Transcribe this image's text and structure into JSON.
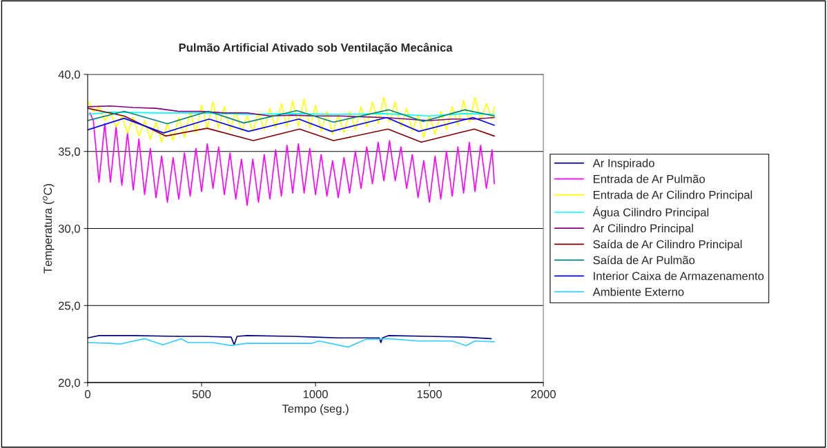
{
  "chart_data": {
    "type": "line",
    "title": "Pulmão Artificial Ativado sob Ventilação Mecânica",
    "xlabel": "Tempo (seg.)",
    "ylabel": "Temperatura ($^{o}$C)",
    "xlim": [
      0,
      2000
    ],
    "xticks": [
      0,
      500,
      1000,
      1500,
      2000
    ],
    "ylim": [
      20,
      40
    ],
    "yticks": [
      {
        "value": 20,
        "label": "20,0"
      },
      {
        "value": 25,
        "label": "25,0"
      },
      {
        "value": 30,
        "label": "30,0"
      },
      {
        "value": 35,
        "label": "35,0"
      },
      {
        "value": 40,
        "label": "40,0"
      }
    ],
    "grid": "y",
    "legend": "right",
    "marker": "none",
    "line_style": "solid",
    "series": [
      {
        "name": "Ar Inspirado",
        "color": "#000080",
        "x": [
          0,
          50,
          200,
          400,
          500,
          630,
          643,
          656,
          700,
          900,
          1000,
          1100,
          1280,
          1287,
          1294,
          1320,
          1500,
          1650,
          1771
        ],
        "values": [
          22.9,
          23.05,
          23.05,
          23.0,
          23.0,
          22.95,
          22.45,
          23.0,
          23.05,
          23.0,
          22.95,
          22.9,
          22.9,
          22.6,
          22.9,
          23.05,
          23.0,
          22.95,
          22.85
        ]
      },
      {
        "name": "Entrada de Ar Pulmão",
        "color": "#ff00ff",
        "x": [
          10,
          25,
          50,
          75,
          100,
          125,
          150,
          175,
          200,
          225,
          250,
          275,
          300,
          325,
          350,
          375,
          400,
          425,
          450,
          475,
          500,
          525,
          550,
          575,
          600,
          625,
          650,
          675,
          700,
          725,
          750,
          775,
          800,
          825,
          850,
          875,
          900,
          925,
          950,
          975,
          1000,
          1025,
          1050,
          1075,
          1100,
          1125,
          1150,
          1175,
          1200,
          1225,
          1250,
          1275,
          1300,
          1325,
          1350,
          1375,
          1400,
          1425,
          1450,
          1475,
          1500,
          1525,
          1550,
          1575,
          1600,
          1625,
          1650,
          1675,
          1700,
          1725,
          1750,
          1775,
          1785
        ],
        "values": [
          37.5,
          37.0,
          33.0,
          36.8,
          33.0,
          36.6,
          32.8,
          36.2,
          32.5,
          35.8,
          32.2,
          35.2,
          32.0,
          34.7,
          31.7,
          34.6,
          31.9,
          34.9,
          32.1,
          35.2,
          32.4,
          35.5,
          32.6,
          35.3,
          32.2,
          34.9,
          31.9,
          34.5,
          31.5,
          34.5,
          31.7,
          34.8,
          31.9,
          35.1,
          32.1,
          35.4,
          32.3,
          35.5,
          32.3,
          35.2,
          32.2,
          34.8,
          32.1,
          34.4,
          32.0,
          34.6,
          32.3,
          35.0,
          32.6,
          35.3,
          32.9,
          35.6,
          33.1,
          35.7,
          33.1,
          35.3,
          32.6,
          34.8,
          32.0,
          34.4,
          31.7,
          34.7,
          31.9,
          35.0,
          32.1,
          35.3,
          32.3,
          35.6,
          32.4,
          35.4,
          32.6,
          35.1,
          32.9
        ]
      },
      {
        "name": "Entrada de Ar Cilindro Principal",
        "color": "#ffff00",
        "x": [
          0,
          25,
          50,
          75,
          100,
          125,
          150,
          175,
          200,
          225,
          250,
          275,
          300,
          325,
          350,
          375,
          400,
          425,
          450,
          475,
          500,
          525,
          550,
          575,
          600,
          625,
          650,
          675,
          700,
          725,
          750,
          775,
          800,
          825,
          850,
          875,
          900,
          925,
          950,
          975,
          1000,
          1025,
          1050,
          1075,
          1100,
          1125,
          1150,
          1175,
          1200,
          1225,
          1250,
          1275,
          1300,
          1325,
          1350,
          1375,
          1400,
          1425,
          1450,
          1475,
          1500,
          1525,
          1550,
          1575,
          1600,
          1625,
          1650,
          1675,
          1700,
          1725,
          1750,
          1775,
          1785
        ],
        "values": [
          38.3,
          37.6,
          37.9,
          37.0,
          37.5,
          36.6,
          37.3,
          36.2,
          37.2,
          36.0,
          37.0,
          35.8,
          36.9,
          35.6,
          36.8,
          35.7,
          37.2,
          35.9,
          37.6,
          36.2,
          38.0,
          36.5,
          38.2,
          36.5,
          37.9,
          36.4,
          37.6,
          36.3,
          37.3,
          36.3,
          37.5,
          36.4,
          37.8,
          36.5,
          38.1,
          36.6,
          38.3,
          36.6,
          38.4,
          36.5,
          38.0,
          36.3,
          37.6,
          36.1,
          37.4,
          36.2,
          37.6,
          36.4,
          37.9,
          36.6,
          38.2,
          36.8,
          38.5,
          36.9,
          38.2,
          36.6,
          37.8,
          36.3,
          37.4,
          35.9,
          37.3,
          36.1,
          37.6,
          36.4,
          37.9,
          36.7,
          38.3,
          36.9,
          38.5,
          37.0,
          38.1,
          37.1,
          37.9
        ]
      },
      {
        "name": "Água Cilindro Principal",
        "color": "#00ffff",
        "x": [
          0,
          100,
          300,
          500,
          700,
          900,
          1100,
          1300,
          1500,
          1650,
          1785
        ],
        "values": [
          37.4,
          37.55,
          37.5,
          37.5,
          37.4,
          37.45,
          37.4,
          37.45,
          37.3,
          37.45,
          37.4
        ]
      },
      {
        "name": "Ar Cilindro Principal",
        "color": "#800080",
        "x": [
          0,
          100,
          200,
          300,
          400,
          500,
          600,
          700,
          800,
          900,
          1000,
          1100,
          1200,
          1300,
          1400,
          1500,
          1600,
          1700,
          1785
        ],
        "values": [
          37.9,
          37.95,
          37.85,
          37.8,
          37.6,
          37.6,
          37.5,
          37.5,
          37.3,
          37.35,
          37.3,
          37.3,
          37.25,
          37.2,
          37.1,
          37.0,
          37.1,
          37.1,
          37.2
        ]
      },
      {
        "name": "Saída de Ar Cilindro Principal",
        "color": "#800000",
        "x": [
          0,
          160,
          230,
          342,
          524,
          727,
          930,
          1079,
          1318,
          1464,
          1697,
          1785
        ],
        "values": [
          37.8,
          37.3,
          36.8,
          36.0,
          36.5,
          35.7,
          36.45,
          35.7,
          36.45,
          35.6,
          36.45,
          36.0
        ]
      },
      {
        "name": "Saída de Ar Pulmão",
        "color": "#008080",
        "x": [
          0,
          160,
          350,
          530,
          685,
          918,
          1079,
          1321,
          1473,
          1655,
          1785
        ],
        "values": [
          37.0,
          37.6,
          36.8,
          37.6,
          36.85,
          37.65,
          36.9,
          37.7,
          36.95,
          37.7,
          37.3
        ]
      },
      {
        "name": "Interior Caixa de Armazenamento",
        "color": "#0000ff",
        "x": [
          0,
          160,
          333,
          533,
          706,
          927,
          1070,
          1312,
          1454,
          1691,
          1785
        ],
        "values": [
          36.4,
          37.15,
          36.2,
          37.1,
          36.3,
          37.1,
          36.3,
          37.2,
          36.3,
          37.2,
          36.7
        ]
      },
      {
        "name": "Ambiente Externo",
        "color": "#33ccff",
        "x": [
          0,
          100,
          140,
          250,
          330,
          411,
          440,
          550,
          628,
          700,
          985,
          1015,
          1143,
          1220,
          1320,
          1450,
          1600,
          1661,
          1700,
          1785
        ],
        "values": [
          22.6,
          22.55,
          22.5,
          22.85,
          22.45,
          22.85,
          22.6,
          22.6,
          22.4,
          22.55,
          22.55,
          22.7,
          22.3,
          22.8,
          22.85,
          22.7,
          22.7,
          22.4,
          22.7,
          22.65
        ]
      }
    ]
  }
}
